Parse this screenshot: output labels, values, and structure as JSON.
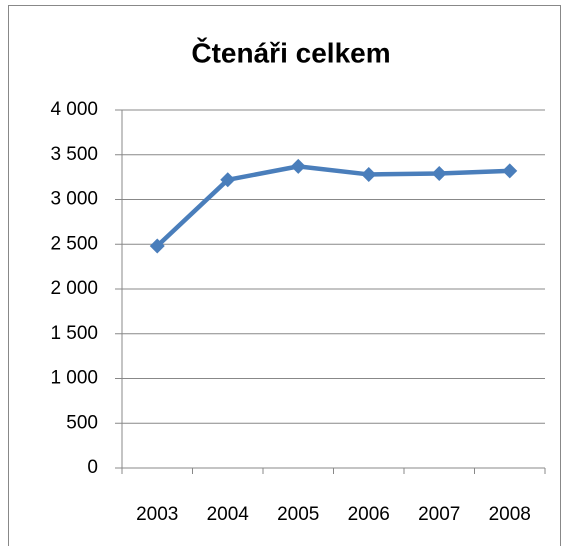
{
  "chart_data": {
    "type": "line",
    "title": "Čtenáři celkem",
    "categories": [
      "2003",
      "2004",
      "2005",
      "2006",
      "2007",
      "2008"
    ],
    "series": [
      {
        "name": "Čtenáři celkem",
        "color": "#4a7ebb",
        "values": [
          2480,
          3220,
          3370,
          3280,
          3290,
          3320
        ]
      }
    ],
    "ylim": [
      0,
      4000
    ],
    "yticks": [
      0,
      500,
      {
        "value": 1000,
        "label": "1 000"
      },
      {
        "value": 1500,
        "label": "1 500"
      },
      {
        "value": 2000,
        "label": "2 000"
      },
      {
        "value": 2500,
        "label": "2 500"
      },
      {
        "value": 3000,
        "label": "3 000"
      },
      {
        "value": 3500,
        "label": "3 500"
      },
      {
        "value": 4000,
        "label": "4 000"
      }
    ],
    "grid": true
  }
}
